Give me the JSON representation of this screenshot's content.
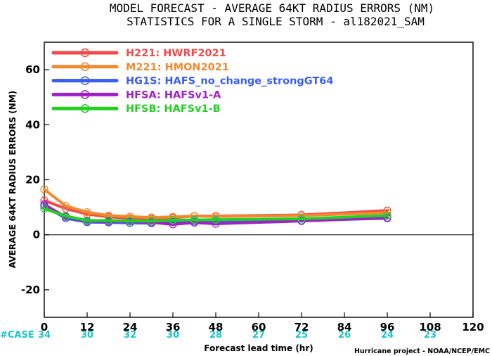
{
  "chart_data": {
    "type": "line",
    "title": "MODEL FORECAST - AVERAGE 64KT RADIUS ERRORS (NM)",
    "subtitle": "STATISTICS FOR A SINGLE STORM - al182021_SAM",
    "xlabel": "Forecast lead time (hr)",
    "ylabel": "AVERAGE 64KT RADIUS ERRORS (NM)",
    "xlim": [
      0,
      120
    ],
    "ylim": [
      -30,
      70
    ],
    "xticks": [
      0,
      12,
      24,
      36,
      48,
      60,
      72,
      84,
      96,
      108,
      120
    ],
    "yticks": [
      -20,
      0,
      20,
      40,
      60
    ],
    "zero_line": true,
    "legend_position": "top-left",
    "case_label": "#CASE",
    "cases": [
      {
        "hour": 0,
        "count": "34"
      },
      {
        "hour": 12,
        "count": "30"
      },
      {
        "hour": 24,
        "count": "32"
      },
      {
        "hour": 36,
        "count": "30"
      },
      {
        "hour": 48,
        "count": "28"
      },
      {
        "hour": 60,
        "count": "27"
      },
      {
        "hour": 72,
        "count": "25"
      },
      {
        "hour": 84,
        "count": "26"
      },
      {
        "hour": 96,
        "count": "24"
      },
      {
        "hour": 108,
        "count": "23"
      }
    ],
    "series": [
      {
        "name": "H221: HWRF2021",
        "color": "#f04a4a",
        "x": [
          0,
          6,
          12,
          18,
          24,
          30,
          36,
          42,
          48,
          72,
          96
        ],
        "y": [
          12.5,
          9.5,
          7.5,
          6.5,
          6.0,
          5.8,
          6.2,
          6.8,
          6.8,
          7.2,
          8.8
        ]
      },
      {
        "name": "M221: HMON2021",
        "color": "#f08a30",
        "x": [
          0,
          6,
          12,
          18,
          24,
          30,
          36,
          42,
          48,
          72,
          96
        ],
        "y": [
          16.5,
          10.5,
          8.2,
          7.0,
          6.6,
          6.3,
          6.5,
          6.8,
          6.6,
          7.0,
          8.0
        ]
      },
      {
        "name": "HG1S: HAFS_no_change_strongGT64",
        "color": "#3a5df0",
        "x": [
          0,
          6,
          12,
          18,
          24,
          30,
          36,
          42,
          48,
          72,
          96
        ],
        "y": [
          10.5,
          6.0,
          4.6,
          4.5,
          4.3,
          4.2,
          4.6,
          4.8,
          4.8,
          5.2,
          6.0
        ]
      },
      {
        "name": "HFSA: HAFSv1-A",
        "color": "#a020c8",
        "x": [
          0,
          6,
          12,
          18,
          24,
          30,
          36,
          42,
          48,
          72,
          96
        ],
        "y": [
          11.0,
          6.5,
          5.0,
          4.8,
          4.8,
          4.5,
          3.8,
          4.4,
          4.0,
          5.0,
          6.2
        ]
      },
      {
        "name": "HFSB: HAFSv1-B",
        "color": "#22d022",
        "x": [
          0,
          6,
          12,
          18,
          24,
          30,
          36,
          42,
          48,
          72,
          96
        ],
        "y": [
          9.5,
          6.8,
          5.2,
          5.2,
          5.0,
          5.0,
          5.3,
          5.4,
          5.5,
          5.8,
          7.0
        ]
      }
    ],
    "credit": "Hurricane project - NOAA/NCEP/EMC"
  }
}
